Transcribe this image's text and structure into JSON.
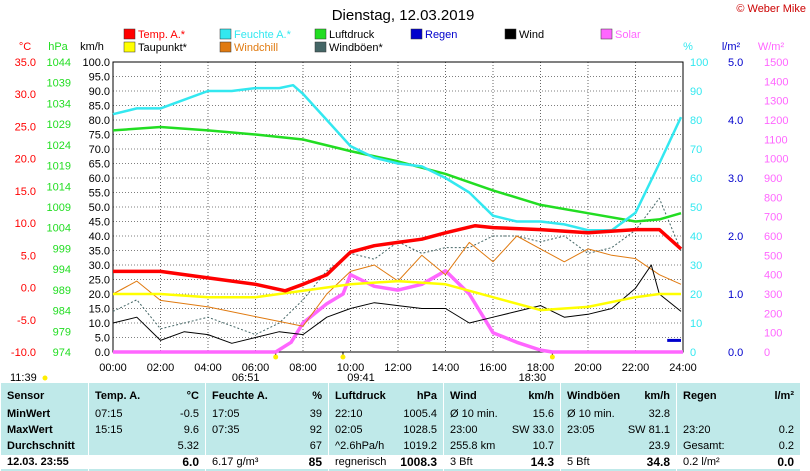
{
  "title": "Dienstag, 12.03.2019",
  "copyright": "© Weber Mike",
  "colors": {
    "temp": "#ff0000",
    "feuchte": "#33e8f0",
    "luftdruck": "#22dd22",
    "regen": "#0000cc",
    "wind": "#000000",
    "solar": "#ff66ff",
    "taupunkt": "#ffff00",
    "windchill": "#e07a10",
    "windboeen": "#446666",
    "table_bg": "#bfe9e9"
  },
  "legend": [
    {
      "key": "temp",
      "label": "Temp. A.*"
    },
    {
      "key": "feuchte",
      "label": "Feuchte A.*"
    },
    {
      "key": "luftdruck",
      "label": "Luftdruck"
    },
    {
      "key": "regen",
      "label": "Regen"
    },
    {
      "key": "wind",
      "label": "Wind"
    },
    {
      "key": "solar",
      "label": "Solar"
    },
    {
      "key": "taupunkt",
      "label": "Taupunkt*"
    },
    {
      "key": "windchill",
      "label": "Windchill"
    },
    {
      "key": "windboeen",
      "label": "Windböen*"
    }
  ],
  "axes": {
    "temp": {
      "unit": "°C",
      "ticks": [
        "35.0",
        "30.0",
        "25.0",
        "20.0",
        "15.0",
        "10.0",
        "5.0",
        "0.0",
        "-5.0",
        "-10.0"
      ]
    },
    "hpa": {
      "unit": "hPa",
      "ticks": [
        "1044",
        "1039",
        "1034",
        "1029",
        "1024",
        "1019",
        "1014",
        "1009",
        "1004",
        "999",
        "994",
        "989",
        "984",
        "979",
        "974"
      ]
    },
    "kmh": {
      "unit": "km/h",
      "ticks": [
        "100.0",
        "95.0",
        "90.0",
        "85.0",
        "80.0",
        "75.0",
        "70.0",
        "65.0",
        "60.0",
        "55.0",
        "50.0",
        "45.0",
        "40.0",
        "35.0",
        "30.0",
        "25.0",
        "20.0",
        "15.0",
        "10.0",
        "5.0",
        "0.0"
      ]
    },
    "pct": {
      "unit": "%",
      "ticks": [
        "100",
        "90",
        "80",
        "70",
        "60",
        "50",
        "40",
        "30",
        "20",
        "10",
        "0"
      ]
    },
    "lm2": {
      "unit": "l/m²",
      "ticks": [
        "5.0",
        "4.0",
        "3.0",
        "2.0",
        "1.0",
        "0.0"
      ]
    },
    "wm2": {
      "unit": "W/m²",
      "ticks": [
        "1500",
        "1400",
        "1300",
        "1200",
        "1100",
        "1000",
        "900",
        "800",
        "700",
        "600",
        "500",
        "400",
        "300",
        "200",
        "100",
        "0"
      ]
    },
    "x": {
      "ticks": [
        "00:00",
        "02:00",
        "04:00",
        "06:00",
        "08:00",
        "10:00",
        "12:00",
        "14:00",
        "16:00",
        "18:00",
        "20:00",
        "22:00",
        "24:00"
      ]
    }
  },
  "sun_markers": {
    "left": "11:39",
    "sunrise": "06:51",
    "noon": "09:41",
    "sunset": "18:30"
  },
  "chart_data": {
    "type": "line",
    "title": "Dienstag, 12.03.2019",
    "x_label": "",
    "xlim": [
      "00:00",
      "24:00"
    ],
    "series": [
      {
        "name": "Temp. A.*",
        "unit": "°C",
        "x": [
          "00:00",
          "02:00",
          "04:00",
          "06:00",
          "07:15",
          "08:00",
          "09:00",
          "10:00",
          "11:00",
          "12:00",
          "13:00",
          "14:00",
          "15:15",
          "16:00",
          "18:00",
          "20:00",
          "22:00",
          "23:00",
          "23:55"
        ],
        "y": [
          2.5,
          2.5,
          1.5,
          0.5,
          -0.5,
          0.5,
          2.0,
          5.5,
          6.5,
          7.0,
          7.5,
          8.5,
          9.6,
          9.3,
          9.0,
          8.5,
          9.0,
          9.0,
          6.0
        ]
      },
      {
        "name": "Feuchte A.*",
        "unit": "%",
        "x": [
          "00:00",
          "01:00",
          "02:00",
          "03:00",
          "04:00",
          "05:00",
          "06:00",
          "07:00",
          "07:35",
          "08:00",
          "09:00",
          "10:00",
          "11:00",
          "12:00",
          "13:00",
          "14:00",
          "15:00",
          "16:00",
          "17:00",
          "18:00",
          "19:00",
          "20:00",
          "21:00",
          "22:00",
          "23:00",
          "23:55"
        ],
        "y": [
          82,
          84,
          84,
          87,
          90,
          90,
          91,
          91,
          92,
          89,
          80,
          71,
          67,
          65,
          64,
          60,
          55,
          47,
          45,
          45,
          44,
          42,
          42,
          48,
          65,
          81
        ]
      },
      {
        "name": "Luftdruck",
        "unit": "hPa",
        "x": [
          "00:00",
          "02:00",
          "04:00",
          "06:00",
          "08:00",
          "10:00",
          "12:00",
          "14:00",
          "16:00",
          "18:00",
          "20:00",
          "22:00",
          "23:00",
          "23:55"
        ],
        "y": [
          1027.5,
          1028.3,
          1027.5,
          1026.5,
          1025.3,
          1022.5,
          1020.0,
          1017.0,
          1013.0,
          1009.5,
          1007.5,
          1005.5,
          1006.0,
          1007.5
        ]
      },
      {
        "name": "Taupunkt*",
        "unit": "°C",
        "x": [
          "00:00",
          "02:00",
          "04:00",
          "06:00",
          "08:00",
          "10:00",
          "12:00",
          "14:00",
          "16:00",
          "18:00",
          "20:00",
          "22:00",
          "23:00",
          "23:55"
        ],
        "y": [
          -1.0,
          -1.0,
          -1.5,
          -1.5,
          -0.5,
          0.5,
          1.0,
          0.5,
          -1.5,
          -3.5,
          -3.0,
          -1.5,
          -1.0,
          -1.0
        ]
      },
      {
        "name": "Windchill",
        "unit": "°C",
        "x": [
          "00:00",
          "01:00",
          "02:00",
          "04:00",
          "06:00",
          "08:00",
          "09:00",
          "10:00",
          "11:00",
          "12:00",
          "13:00",
          "14:00",
          "15:00",
          "16:00",
          "17:00",
          "18:00",
          "19:00",
          "20:00",
          "21:00",
          "22:00",
          "23:00",
          "23:55"
        ],
        "y": [
          -1.0,
          1.0,
          -2.0,
          -3.0,
          -4.5,
          -6.0,
          -1.0,
          2.5,
          3.5,
          1.0,
          5.0,
          2.0,
          7.0,
          4.0,
          8.0,
          6.0,
          4.0,
          6.0,
          5.0,
          4.5,
          2.0,
          0.5
        ]
      },
      {
        "name": "Wind",
        "unit": "km/h",
        "x": [
          "00:00",
          "01:00",
          "02:00",
          "03:00",
          "04:00",
          "05:00",
          "06:00",
          "07:00",
          "08:00",
          "09:00",
          "10:00",
          "11:00",
          "12:00",
          "13:00",
          "14:00",
          "15:00",
          "16:00",
          "17:00",
          "18:00",
          "19:00",
          "20:00",
          "21:00",
          "22:00",
          "22:40",
          "23:00",
          "23:55"
        ],
        "y": [
          10,
          12,
          4,
          7,
          6,
          3,
          5,
          7,
          6,
          12,
          15,
          17,
          16,
          15,
          15,
          10,
          12,
          14,
          16,
          12,
          13,
          15,
          22,
          30,
          20,
          14
        ]
      },
      {
        "name": "Windböen*",
        "unit": "km/h",
        "x": [
          "00:00",
          "01:00",
          "02:00",
          "04:00",
          "06:00",
          "07:00",
          "08:00",
          "09:00",
          "10:00",
          "11:00",
          "12:00",
          "13:00",
          "14:00",
          "15:00",
          "16:00",
          "17:00",
          "18:00",
          "19:00",
          "20:00",
          "21:00",
          "22:00",
          "23:00",
          "23:55"
        ],
        "y": [
          14,
          18,
          8,
          12,
          6,
          10,
          18,
          28,
          34,
          32,
          38,
          34,
          36,
          36,
          40,
          40,
          38,
          40,
          34,
          36,
          42,
          53,
          35
        ]
      },
      {
        "name": "Solar",
        "unit": "W/m²",
        "x": [
          "00:00",
          "06:51",
          "07:30",
          "08:00",
          "09:00",
          "09:41",
          "10:00",
          "11:00",
          "12:00",
          "13:00",
          "14:00",
          "15:00",
          "16:00",
          "17:00",
          "18:00",
          "18:30",
          "24:00"
        ],
        "y": [
          0,
          0,
          50,
          150,
          250,
          300,
          400,
          340,
          320,
          350,
          420,
          300,
          100,
          50,
          10,
          0,
          0
        ]
      },
      {
        "name": "Regen",
        "unit": "l/m²",
        "x": [
          "23:20",
          "23:55"
        ],
        "y": [
          0.2,
          0.2
        ]
      }
    ]
  },
  "table": {
    "cols": [
      {
        "title": "Sensor",
        "unit": "",
        "rows": [
          "MinWert",
          "MaxWert",
          "Durchschnitt"
        ],
        "foot": "12.03. 23:55"
      },
      {
        "title": "Temp. A.",
        "unit": "°C",
        "rows_a": [
          "07:15",
          "15:15",
          ""
        ],
        "rows_b": [
          "-0.5",
          "9.6",
          "5.32"
        ],
        "foot_a": "",
        "foot_b": "6.0"
      },
      {
        "title": "Feuchte A.",
        "unit": "%",
        "rows_a": [
          "17:05",
          "07:35",
          ""
        ],
        "rows_b": [
          "39",
          "92",
          "67"
        ],
        "foot_a": "6.17 g/m³",
        "foot_b": "85"
      },
      {
        "title": "Luftdruck",
        "unit": "hPa",
        "rows_a": [
          "22:10",
          "02:05",
          "^2.6hPa/h"
        ],
        "rows_b": [
          "1005.4",
          "1028.5",
          "1019.2"
        ],
        "foot_a": "regnerisch",
        "foot_b": "1008.3"
      },
      {
        "title": "Wind",
        "unit": "km/h",
        "rows_a": [
          "Ø 10 min.",
          "23:00",
          "255.8 km"
        ],
        "rows_b": [
          "15.6",
          "SW 33.0",
          "10.7"
        ],
        "foot_a": "3 Bft",
        "foot_b": "14.3"
      },
      {
        "title": "Windböen",
        "unit": "km/h",
        "rows_a": [
          "Ø 10 min.",
          "23:05",
          ""
        ],
        "rows_b": [
          "32.8",
          "SW 81.1",
          "23.9"
        ],
        "foot_a": "5 Bft",
        "foot_b": "34.8"
      },
      {
        "title": "Regen",
        "unit": "l/m²",
        "rows_a": [
          "",
          "23:20",
          "Gesamt:"
        ],
        "rows_b": [
          "",
          "0.2",
          "0.2"
        ],
        "foot_a": "0.2 l/m²",
        "foot_b": "0.0"
      }
    ]
  }
}
